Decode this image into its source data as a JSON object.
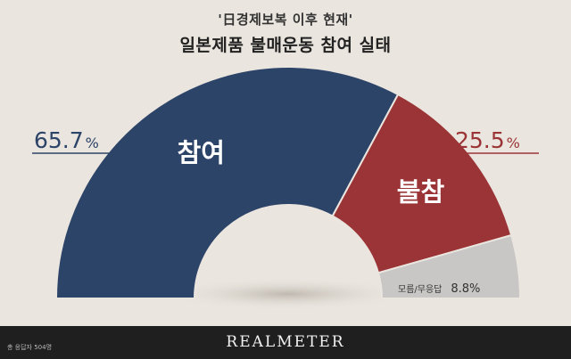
{
  "title_line1": "'日경제보복 이후 현재'",
  "title_line2": "일본제품 불매운동 참여 실태",
  "chart_data": {
    "type": "pie",
    "categories": [
      "참여",
      "불참",
      "모름/무응답"
    ],
    "values": [
      65.7,
      25.5,
      8.8
    ],
    "value_labels": [
      "65.7",
      "25.5",
      "8.8"
    ],
    "unit": "%",
    "colors": [
      "#2d4469",
      "#9b3436",
      "#c8c7c6"
    ]
  },
  "footer": {
    "note": "총 응답자 504명",
    "brand": "REALMETER"
  }
}
